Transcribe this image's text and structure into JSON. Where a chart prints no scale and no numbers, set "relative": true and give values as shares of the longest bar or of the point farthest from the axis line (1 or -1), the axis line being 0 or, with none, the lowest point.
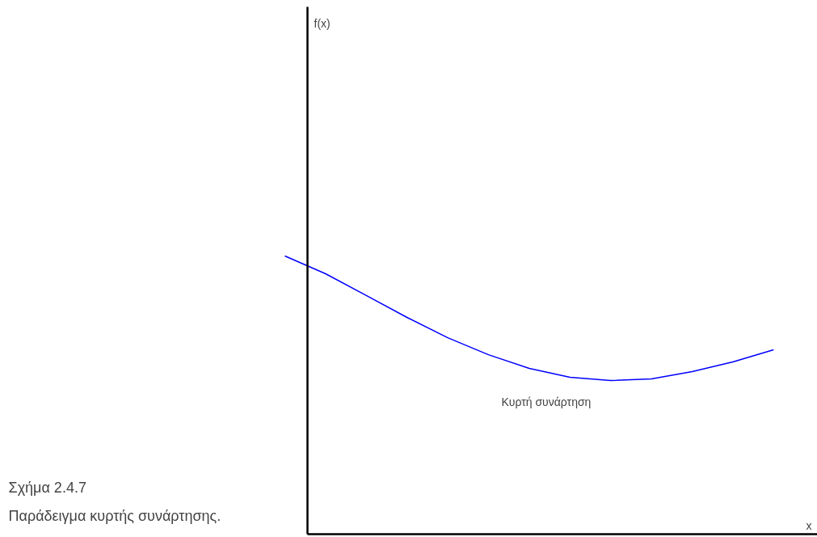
{
  "chart_data": {
    "type": "line",
    "relative": true,
    "xlabel": "x",
    "annotations": [
      "f(x)",
      "Κυρτή συνάρτηση",
      "Σχήμα 2.4.7",
      "Παράδειγμα κυρτής συνάρτησης."
    ],
    "categories": [
      null,
      null,
      null,
      null,
      null,
      null,
      null,
      null,
      null,
      null,
      null,
      null,
      null
    ],
    "series": [
      {
        "color": "#0000ff",
        "values": [
          1.0,
          0.936,
          0.858,
          0.779,
          0.706,
          0.645,
          0.596,
          0.564,
          0.552,
          0.558,
          0.584,
          0.619,
          0.663
        ]
      }
    ]
  }
}
